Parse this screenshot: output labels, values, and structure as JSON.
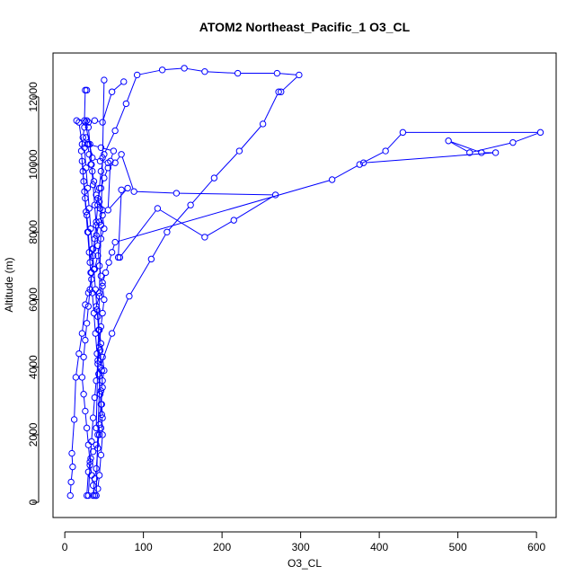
{
  "chart_data": {
    "type": "line",
    "title": "ATOM2 Northeast_Pacific_1 O3_CL",
    "xlabel": "O3_CL",
    "ylabel": "Altitude (m)",
    "xlim": [
      -15,
      625
    ],
    "ylim": [
      -450,
      13300
    ],
    "x_ticks": [
      0,
      100,
      200,
      300,
      400,
      500,
      600
    ],
    "y_ticks": [
      0,
      2000,
      4000,
      6000,
      8000,
      10000,
      12000
    ],
    "grid": false,
    "legend": "none",
    "series": [
      {
        "x": [
          7,
          8,
          10,
          9,
          12,
          14,
          18,
          22,
          26,
          30,
          34,
          38,
          42,
          46,
          50,
          48,
          45,
          42,
          46,
          50,
          55,
          64,
          72,
          88,
          142,
          268,
          215,
          178,
          118,
          70,
          68,
          72,
          80,
          55,
          58,
          62,
          46,
          30,
          22,
          18,
          15,
          25,
          26,
          28
        ],
        "y": [
          200,
          600,
          1050,
          1450,
          2450,
          3700,
          4400,
          5000,
          5850,
          6200,
          6600,
          6900,
          7300,
          7800,
          8100,
          8500,
          8700,
          9000,
          9300,
          9600,
          9900,
          10050,
          10300,
          9200,
          9150,
          9100,
          8350,
          7850,
          8700,
          7250,
          7250,
          9250,
          9300,
          8650,
          10100,
          10400,
          10500,
          10600,
          10600,
          11250,
          11300,
          11300,
          12200,
          12200
        ]
      },
      {
        "x": [
          28,
          30,
          33,
          36,
          40,
          44,
          46,
          48,
          47,
          46,
          48,
          50,
          48,
          46,
          44,
          42,
          40,
          44,
          48,
          52,
          56,
          60,
          64,
          340,
          375,
          408,
          430,
          605,
          570,
          515,
          488,
          530,
          548,
          380
        ],
        "y": [
          200,
          900,
          1300,
          1500,
          1700,
          2000,
          2200,
          2500,
          2900,
          3300,
          3600,
          3900,
          4300,
          4700,
          5100,
          5500,
          5800,
          6100,
          6500,
          6800,
          7100,
          7400,
          7700,
          9550,
          10000,
          10400,
          10950,
          10950,
          10650,
          10350,
          10700,
          10350,
          10350,
          10050
        ]
      },
      {
        "x": [
          38,
          36,
          34,
          32,
          30,
          28,
          26,
          24,
          22,
          24,
          26,
          28,
          30,
          32,
          34,
          36,
          38,
          40,
          42,
          44,
          46,
          50,
          64,
          78,
          92,
          124,
          152,
          178,
          220,
          270,
          298,
          275
        ],
        "y": [
          200,
          500,
          800,
          1200,
          1700,
          2200,
          2700,
          3200,
          3700,
          4300,
          4800,
          5300,
          5800,
          6300,
          6800,
          7300,
          7800,
          8300,
          8800,
          9300,
          9800,
          10300,
          11000,
          11800,
          12650,
          12800,
          12850,
          12750,
          12700,
          12700,
          12650,
          12150
        ]
      },
      {
        "x": [
          40,
          42,
          44,
          46,
          48,
          47,
          45,
          43,
          41,
          39,
          37,
          35,
          33,
          31,
          29,
          27,
          25,
          23,
          21,
          23,
          25,
          30,
          38,
          48,
          60,
          75
        ],
        "y": [
          200,
          400,
          800,
          1400,
          2000,
          2600,
          3200,
          3800,
          4400,
          5000,
          5600,
          6200,
          6800,
          7400,
          8000,
          8600,
          9200,
          9800,
          10400,
          10800,
          11100,
          11250,
          11300,
          11250,
          12150,
          12450
        ]
      },
      {
        "x": [
          36,
          38,
          40,
          42,
          44,
          46,
          48,
          47,
          45,
          43,
          41,
          39,
          37,
          35,
          33,
          31,
          29,
          27,
          25,
          27,
          29,
          31,
          33,
          35,
          37,
          40,
          44,
          48,
          44,
          40,
          36,
          32,
          30,
          28,
          26,
          24,
          22
        ],
        "y": [
          200,
          700,
          1000,
          1600,
          2300,
          2900,
          3400,
          3900,
          4500,
          5100,
          5700,
          6300,
          6900,
          7500,
          8100,
          8700,
          9300,
          9900,
          10500,
          10800,
          10600,
          10300,
          10000,
          9800,
          9500,
          9100,
          8900,
          8650,
          8300,
          7900,
          7500,
          7100,
          8000,
          8500,
          9000,
          9500,
          10100
        ]
      },
      {
        "x": [
          30,
          32,
          34,
          36,
          38,
          40,
          42,
          44,
          46,
          48,
          50,
          48,
          46,
          44,
          42,
          40,
          38,
          36,
          34,
          32,
          30,
          28,
          26,
          35,
          45,
          55
        ],
        "y": [
          200,
          1100,
          1800,
          2500,
          3100,
          3600,
          4100,
          4600,
          5200,
          5600,
          6000,
          6400,
          6700,
          7000,
          7600,
          8200,
          8800,
          9400,
          10000,
          10600,
          11100,
          11300,
          11250,
          10200,
          10100,
          10050
        ]
      },
      {
        "x": [
          40,
          42,
          45,
          60,
          82,
          110,
          130,
          160,
          190,
          222,
          252,
          272
        ],
        "y": [
          200,
          2000,
          4000,
          5000,
          6100,
          7200,
          8000,
          8800,
          9600,
          10400,
          11200,
          12150
        ]
      },
      {
        "x": [
          40,
          42,
          44,
          46,
          48,
          50
        ],
        "y": [
          2200,
          4200,
          6200,
          8200,
          10200,
          12500
        ]
      }
    ]
  }
}
